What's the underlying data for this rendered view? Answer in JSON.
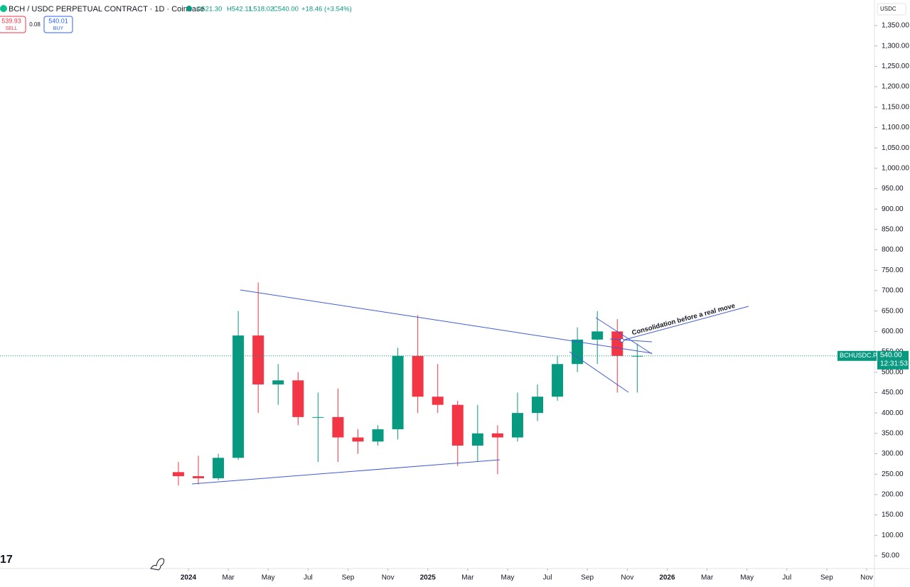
{
  "chart_data": {
    "type": "candlestick",
    "title": "BCH / USDC PERPETUAL CONTRACT · 1D · Coinbase",
    "ohlc_header": {
      "open": "O521.30",
      "high": "H542.11",
      "low": "L518.02",
      "close": "C540.00",
      "change": "+18.46 (+3.54%)"
    },
    "sell_price": "539.93",
    "sell_label": "SELL",
    "spread": "0.08",
    "buy_price": "540.01",
    "buy_label": "BUY",
    "currency": "USDC",
    "symbol_label": "BCHUSDC.P",
    "last_price": {
      "value": 540,
      "label": "540.00"
    },
    "countdown": "12:31:53",
    "annotation": "Consolidation before a real move",
    "up_color": "#089981",
    "down_color": "#f23645",
    "x": [
      "2023-12",
      "2024-01",
      "2024-02",
      "2024-03",
      "2024-04",
      "2024-05",
      "2024-06",
      "2024-07",
      "2024-08",
      "2024-09",
      "2024-10",
      "2024-11",
      "2024-12",
      "2025-01",
      "2025-02",
      "2025-03",
      "2025-04",
      "2025-05",
      "2025-06",
      "2025-07",
      "2025-08",
      "2025-09",
      "2025-10",
      "2025-11"
    ],
    "open": [
      255,
      245,
      240,
      290,
      590,
      470,
      480,
      390,
      390,
      340,
      330,
      360,
      540,
      440,
      420,
      320,
      350,
      340,
      400,
      440,
      520,
      580,
      600,
      540
    ],
    "high": [
      280,
      295,
      300,
      650,
      720,
      520,
      500,
      450,
      460,
      360,
      370,
      560,
      640,
      520,
      430,
      420,
      370,
      450,
      470,
      540,
      610,
      650,
      630,
      570
    ],
    "low": [
      222,
      225,
      235,
      285,
      400,
      420,
      370,
      280,
      280,
      300,
      320,
      335,
      400,
      400,
      270,
      280,
      250,
      330,
      380,
      430,
      500,
      520,
      450,
      450
    ],
    "close": [
      245,
      240,
      290,
      590,
      470,
      480,
      390,
      390,
      340,
      330,
      360,
      540,
      440,
      420,
      320,
      350,
      340,
      400,
      440,
      520,
      580,
      600,
      540,
      540
    ],
    "ylim": [
      18.6,
      1412.7
    ],
    "yticks": [
      {
        "value": 50,
        "label": "50.00"
      },
      {
        "value": 100,
        "label": "100.00"
      },
      {
        "value": 150,
        "label": "150.00"
      },
      {
        "value": 200,
        "label": "200.00"
      },
      {
        "value": 250,
        "label": "250.00"
      },
      {
        "value": 300,
        "label": "300.00"
      },
      {
        "value": 350,
        "label": "350.00"
      },
      {
        "value": 400,
        "label": "400.00"
      },
      {
        "value": 450,
        "label": "450.00"
      },
      {
        "value": 500,
        "label": "500.00"
      },
      {
        "value": 550,
        "label": "550.00"
      },
      {
        "value": 600,
        "label": "600.00"
      },
      {
        "value": 650,
        "label": "650.00"
      },
      {
        "value": 700,
        "label": "700.00"
      },
      {
        "value": 750,
        "label": "750.00"
      },
      {
        "value": 800,
        "label": "800.00"
      },
      {
        "value": 850,
        "label": "850.00"
      },
      {
        "value": 900,
        "label": "900.00"
      },
      {
        "value": 950,
        "label": "950.00"
      },
      {
        "value": 1000,
        "label": "1,000.00"
      },
      {
        "value": 1050,
        "label": "1,050.00"
      },
      {
        "value": 1100,
        "label": "1,100.00"
      },
      {
        "value": 1150,
        "label": "1,150.00"
      },
      {
        "value": 1200,
        "label": "1,200.00"
      },
      {
        "value": 1250,
        "label": "1,250.00"
      },
      {
        "value": 1300,
        "label": "1,300.00"
      },
      {
        "value": 1350,
        "label": "1,350.00"
      }
    ],
    "xticks": [
      {
        "value": "2024-01",
        "label": "2024"
      },
      {
        "value": "2024-03",
        "label": "Mar"
      },
      {
        "value": "2024-05",
        "label": "May"
      },
      {
        "value": "2024-07",
        "label": "Jul"
      },
      {
        "value": "2024-09",
        "label": "Sep"
      },
      {
        "value": "2024-11",
        "label": "Nov"
      },
      {
        "value": "2025-01",
        "label": "2025"
      },
      {
        "value": "2025-03",
        "label": "Mar"
      },
      {
        "value": "2025-05",
        "label": "May"
      },
      {
        "value": "2025-07",
        "label": "Jul"
      },
      {
        "value": "2025-09",
        "label": "Sep"
      },
      {
        "value": "2025-11",
        "label": "Nov"
      },
      {
        "value": "2026-01",
        "label": "2026"
      },
      {
        "value": "2026-03",
        "label": "Mar"
      },
      {
        "value": "2026-05",
        "label": "May"
      },
      {
        "value": "2026-07",
        "label": "Jul"
      },
      {
        "value": "2026-09",
        "label": "Sep"
      },
      {
        "value": "2026-11",
        "label": "Nov"
      }
    ]
  }
}
